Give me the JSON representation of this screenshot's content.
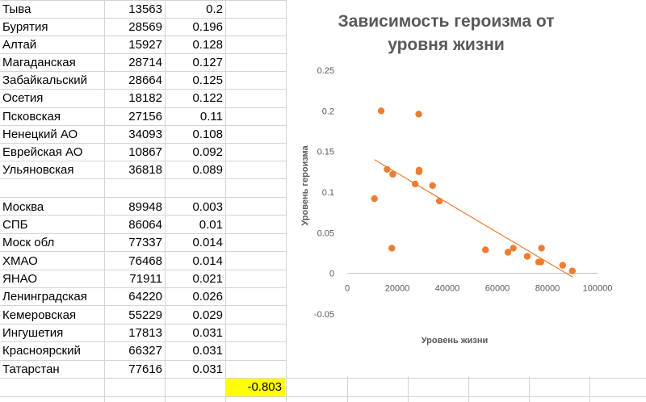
{
  "rows_top": [
    {
      "name": "Тыва",
      "v1": "13563",
      "v2": "0.2"
    },
    {
      "name": "Бурятия",
      "v1": "28569",
      "v2": "0.196"
    },
    {
      "name": "Алтай",
      "v1": "15927",
      "v2": "0.128"
    },
    {
      "name": "Магаданская",
      "v1": "28714",
      "v2": "0.127"
    },
    {
      "name": "Забайкальский",
      "v1": "28664",
      "v2": "0.125"
    },
    {
      "name": "Осетия",
      "v1": "18182",
      "v2": "0.122"
    },
    {
      "name": "Псковская",
      "v1": "27156",
      "v2": "0.11"
    },
    {
      "name": "Ненецкий АО",
      "v1": "34093",
      "v2": "0.108"
    },
    {
      "name": "Еврейская АО",
      "v1": "10867",
      "v2": "0.092"
    },
    {
      "name": "Ульяновская",
      "v1": "36818",
      "v2": "0.089"
    }
  ],
  "rows_bottom": [
    {
      "name": "Москва",
      "v1": "89948",
      "v2": "0.003"
    },
    {
      "name": "СПБ",
      "v1": "86064",
      "v2": "0.01"
    },
    {
      "name": "Моск обл",
      "v1": "77337",
      "v2": "0.014"
    },
    {
      "name": "ХМАО",
      "v1": "76468",
      "v2": "0.014"
    },
    {
      "name": "ЯНАО",
      "v1": "71911",
      "v2": "0.021"
    },
    {
      "name": "Ленинградская",
      "v1": "64220",
      "v2": "0.026"
    },
    {
      "name": "Кемеровская",
      "v1": "55229",
      "v2": "0.029"
    },
    {
      "name": "Ингушетия",
      "v1": "17813",
      "v2": "0.031"
    },
    {
      "name": "Красноярский",
      "v1": "66327",
      "v2": "0.031"
    },
    {
      "name": "Татарстан",
      "v1": "77616",
      "v2": "0.031"
    }
  ],
  "correlation": "-0.803",
  "colors": {
    "highlight": "#ffff00",
    "points": "#ed7d31",
    "trendline": "#ed7d31",
    "title": "#595959"
  },
  "chart_data": {
    "type": "scatter",
    "title": "Зависимость героизма от уровня жизни",
    "title_lines": [
      "Зависимость героизма от",
      "уровня жизни"
    ],
    "xlabel": "Уровень жизни",
    "ylabel": "Уровень героизма",
    "xlim": [
      0,
      100000
    ],
    "ylim": [
      -0.05,
      0.25
    ],
    "x_ticks": [
      "0",
      "20000",
      "40000",
      "60000",
      "80000",
      "100000"
    ],
    "y_ticks": [
      "0.25",
      "0.2",
      "0.15",
      "0.1",
      "0.05",
      "0",
      "-0.05"
    ],
    "grid": false,
    "legend": "none",
    "trendline": "linear",
    "points": [
      [
        13563,
        0.2
      ],
      [
        28569,
        0.196
      ],
      [
        15927,
        0.128
      ],
      [
        28714,
        0.127
      ],
      [
        28664,
        0.125
      ],
      [
        18182,
        0.122
      ],
      [
        27156,
        0.11
      ],
      [
        34093,
        0.108
      ],
      [
        10867,
        0.092
      ],
      [
        36818,
        0.089
      ],
      [
        89948,
        0.003
      ],
      [
        86064,
        0.01
      ],
      [
        77337,
        0.014
      ],
      [
        76468,
        0.014
      ],
      [
        71911,
        0.021
      ],
      [
        64220,
        0.026
      ],
      [
        55229,
        0.029
      ],
      [
        17813,
        0.031
      ],
      [
        66327,
        0.031
      ],
      [
        77616,
        0.031
      ]
    ]
  }
}
